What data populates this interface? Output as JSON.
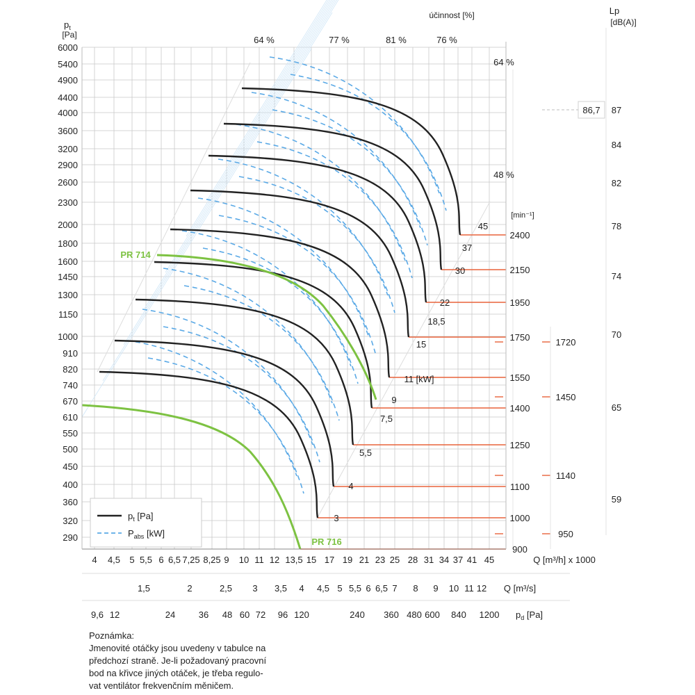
{
  "chart_data": {
    "type": "line",
    "title": "",
    "y_axis": {
      "label": "p",
      "label_sub": "t",
      "unit": "[Pa]",
      "scale": "log",
      "ticks": [
        "6000",
        "5400",
        "4900",
        "4400",
        "4000",
        "3600",
        "3200",
        "2900",
        "2600",
        "2300",
        "2000",
        "1800",
        "1600",
        "1450",
        "1300",
        "1150",
        "1000",
        "910",
        "820",
        "740",
        "670",
        "610",
        "550",
        "500",
        "450",
        "400",
        "360",
        "320",
        "290"
      ]
    },
    "efficiency_axis": {
      "label": "účinnost [%]",
      "top_labels": [
        "64 %",
        "77 %",
        "81 %",
        "76 %"
      ],
      "right_labels": [
        "64 %",
        "48 %"
      ]
    },
    "lp_axis": {
      "label": "Lp",
      "unit": "[dB(A)]",
      "ticks": [
        "87",
        "84",
        "82",
        "78",
        "74",
        "70",
        "65",
        "59"
      ],
      "marker": "86,7"
    },
    "speed_axis": {
      "unit": "[min⁻¹]",
      "labels": [
        "2400",
        "2150",
        "1950",
        "1750",
        "1550",
        "1400",
        "1250",
        "1100",
        "1000",
        "900"
      ],
      "secondary_labels": [
        "1720",
        "1450",
        "1140",
        "950"
      ]
    },
    "x_axis_flow_h": {
      "unit": "Q [m³/h] x 1000",
      "ticks": [
        "4",
        "4,5",
        "5",
        "5,5",
        "6",
        "6,5",
        "7,25",
        "8,25",
        "9",
        "10",
        "11",
        "12",
        "13,5",
        "15",
        "17",
        "19",
        "21",
        "23",
        "25",
        "28",
        "31",
        "34",
        "37",
        "41",
        "45"
      ]
    },
    "x_axis_flow_s": {
      "unit": "Q [m³/s]",
      "ticks": [
        "1,5",
        "2",
        "2,5",
        "3",
        "3,5",
        "4",
        "4,5",
        "5",
        "5,5",
        "6",
        "6,5",
        "7",
        "8",
        "9",
        "10",
        "11",
        "12"
      ]
    },
    "x_axis_pd": {
      "unit": "p",
      "unit_sub": "d",
      "unit_tail": "[Pa]",
      "ticks": [
        "9,6",
        "12",
        "24",
        "36",
        "48",
        "60",
        "72",
        "96",
        "120",
        "240",
        "360",
        "480",
        "600",
        "840",
        "1200"
      ]
    },
    "power_labels": [
      "45",
      "37",
      "30",
      "22",
      "18,5",
      "15",
      "11 [kW]",
      "9",
      "7,5",
      "5,5",
      "4",
      "3"
    ],
    "highlighted_curves": [
      "PR 714",
      "PR 716"
    ],
    "legend": [
      {
        "label": "p",
        "sub": "t",
        "tail": " [Pa]",
        "style": "solid",
        "color": "#222222"
      },
      {
        "label": "P",
        "sub": "abs",
        "tail": " [kW]",
        "style": "dashed",
        "color": "#5aa9e6"
      }
    ],
    "series": [
      {
        "name": "3",
        "start_x": 143,
        "start_y": 535,
        "end_x": 457,
        "end_y": 745
      },
      {
        "name": "4",
        "start_x": 165,
        "start_y": 490,
        "end_x": 480,
        "end_y": 700
      },
      {
        "name": "5,5",
        "start_x": 195,
        "start_y": 431,
        "end_x": 508,
        "end_y": 640
      },
      {
        "name": "7,5",
        "start_x": 222,
        "start_y": 377,
        "end_x": 535,
        "end_y": 587
      },
      {
        "name": "11",
        "start_x": 245,
        "start_y": 330,
        "end_x": 560,
        "end_y": 543
      },
      {
        "name": "15",
        "start_x": 274,
        "start_y": 274,
        "end_x": 588,
        "end_y": 485
      },
      {
        "name": "22",
        "start_x": 300,
        "start_y": 224,
        "end_x": 613,
        "end_y": 435
      },
      {
        "name": "30",
        "start_x": 322,
        "start_y": 178,
        "end_x": 635,
        "end_y": 388
      },
      {
        "name": "45",
        "start_x": 348,
        "start_y": 127,
        "end_x": 662,
        "end_y": 338
      }
    ],
    "colors": {
      "curve": "#222222",
      "highlight": "#7dc242",
      "dashed": "#5aa9e6",
      "guide": "#cfe6f7",
      "grid": "#c9c9c9",
      "speed_line": "#e8623a"
    }
  },
  "note": {
    "title": "Poznámka:",
    "lines": [
      "Jmenovité otáčky jsou uvedeny v tabulce na",
      "předchozí straně. Je-li požadovaný pracovní",
      "bod na křivce jiných otáček, je třeba regulo-",
      "vat ventilátor frekvenčním měničem."
    ]
  }
}
